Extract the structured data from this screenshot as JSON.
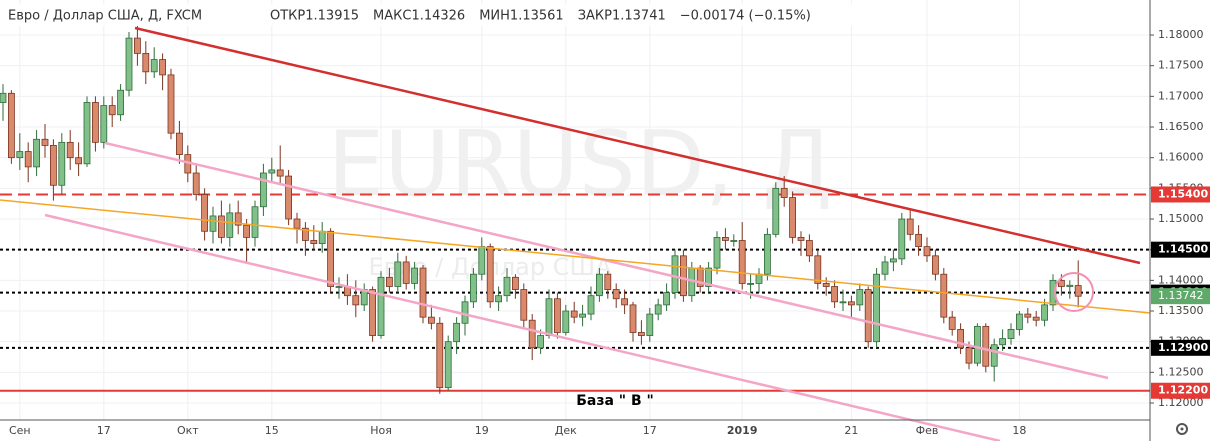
{
  "header": {
    "title": "Евро / Доллар США, Д, FXCM",
    "fields": [
      "ОТКР",
      "МАКС",
      "МИН",
      "ЗАКР"
    ],
    "change": "−0.00174 (−0.15%)"
  },
  "watermark": {
    "symbol": "EURUSD, Д",
    "name": "Евро / Доллар США"
  },
  "annotation": "База \" В \"",
  "chart_data": {
    "type": "candlestick",
    "categories": [
      null,
      null,
      "Сен",
      null,
      null,
      null,
      null,
      null,
      null,
      null,
      null,
      null,
      "17",
      null,
      null,
      null,
      null,
      null,
      null,
      null,
      null,
      null,
      "Окт",
      null,
      null,
      null,
      null,
      null,
      null,
      null,
      null,
      null,
      "15",
      null,
      null,
      null,
      null,
      null,
      null,
      null,
      null,
      null,
      null,
      null,
      null,
      "Ноя",
      null,
      null,
      null,
      null,
      null,
      null,
      null,
      null,
      null,
      null,
      null,
      "19",
      null,
      null,
      null,
      null,
      null,
      null,
      null,
      null,
      null,
      "Дек",
      null,
      null,
      null,
      null,
      null,
      null,
      null,
      null,
      null,
      "17",
      null,
      null,
      null,
      null,
      null,
      null,
      null,
      null,
      null,
      null,
      "2019",
      null,
      null,
      null,
      null,
      null,
      null,
      null,
      null,
      null,
      null,
      null,
      null,
      "21",
      null,
      null,
      null,
      null,
      null,
      null,
      null,
      null,
      "Фев",
      null,
      null,
      null,
      null,
      null,
      null,
      null,
      null,
      null,
      null,
      "18",
      null,
      null,
      null,
      null,
      null,
      null,
      null
    ],
    "candles": [
      [
        1.169,
        1.172,
        1.166,
        1.1705
      ],
      [
        1.1705,
        1.171,
        1.159,
        1.16
      ],
      [
        1.16,
        1.164,
        1.158,
        1.161
      ],
      [
        1.161,
        1.1625,
        1.156,
        1.1585
      ],
      [
        1.1585,
        1.1645,
        1.157,
        1.163
      ],
      [
        1.163,
        1.1655,
        1.16,
        1.162
      ],
      [
        1.162,
        1.163,
        1.153,
        1.1555
      ],
      [
        1.1555,
        1.164,
        1.154,
        1.1625
      ],
      [
        1.1625,
        1.1645,
        1.158,
        1.16
      ],
      [
        1.16,
        1.1625,
        1.157,
        1.159
      ],
      [
        1.159,
        1.17,
        1.1585,
        1.169
      ],
      [
        1.169,
        1.17,
        1.161,
        1.1625
      ],
      [
        1.1625,
        1.17,
        1.1615,
        1.1685
      ],
      [
        1.1685,
        1.17,
        1.165,
        1.167
      ],
      [
        1.167,
        1.172,
        1.166,
        1.171
      ],
      [
        1.171,
        1.1805,
        1.17,
        1.1795
      ],
      [
        1.1795,
        1.1815,
        1.175,
        1.177
      ],
      [
        1.177,
        1.179,
        1.172,
        1.174
      ],
      [
        1.174,
        1.178,
        1.173,
        1.176
      ],
      [
        1.176,
        1.177,
        1.171,
        1.1735
      ],
      [
        1.1735,
        1.1745,
        1.163,
        1.164
      ],
      [
        1.164,
        1.166,
        1.159,
        1.1605
      ],
      [
        1.1605,
        1.162,
        1.156,
        1.1575
      ],
      [
        1.1575,
        1.159,
        1.153,
        1.154
      ],
      [
        1.154,
        1.155,
        1.1465,
        1.148
      ],
      [
        1.148,
        1.152,
        1.146,
        1.1505
      ],
      [
        1.1505,
        1.153,
        1.146,
        1.147
      ],
      [
        1.147,
        1.1525,
        1.1455,
        1.151
      ],
      [
        1.151,
        1.153,
        1.1475,
        1.149
      ],
      [
        1.149,
        1.15,
        1.143,
        1.147
      ],
      [
        1.147,
        1.153,
        1.1455,
        1.152
      ],
      [
        1.152,
        1.159,
        1.1505,
        1.1575
      ],
      [
        1.1575,
        1.16,
        1.156,
        1.158
      ],
      [
        1.158,
        1.162,
        1.1555,
        1.157
      ],
      [
        1.157,
        1.158,
        1.149,
        1.15
      ],
      [
        1.15,
        1.151,
        1.146,
        1.1485
      ],
      [
        1.1485,
        1.1495,
        1.144,
        1.1465
      ],
      [
        1.1465,
        1.149,
        1.145,
        1.146
      ],
      [
        1.146,
        1.1495,
        1.1445,
        1.148
      ],
      [
        1.148,
        1.1485,
        1.138,
        1.139
      ],
      [
        1.139,
        1.1405,
        1.137,
        1.139
      ],
      [
        1.139,
        1.141,
        1.136,
        1.1375
      ],
      [
        1.1375,
        1.14,
        1.134,
        1.136
      ],
      [
        1.136,
        1.1395,
        1.135,
        1.1385
      ],
      [
        1.1385,
        1.139,
        1.13,
        1.131
      ],
      [
        1.131,
        1.1415,
        1.1305,
        1.1405
      ],
      [
        1.1405,
        1.142,
        1.138,
        1.139
      ],
      [
        1.139,
        1.1445,
        1.138,
        1.143
      ],
      [
        1.143,
        1.144,
        1.1385,
        1.1395
      ],
      [
        1.1395,
        1.143,
        1.1385,
        1.142
      ],
      [
        1.142,
        1.1425,
        1.133,
        1.134
      ],
      [
        1.134,
        1.136,
        1.132,
        1.133
      ],
      [
        1.133,
        1.134,
        1.1215,
        1.1225
      ],
      [
        1.1225,
        1.131,
        1.122,
        1.13
      ],
      [
        1.13,
        1.134,
        1.128,
        1.133
      ],
      [
        1.133,
        1.1375,
        1.131,
        1.1365
      ],
      [
        1.1365,
        1.142,
        1.1355,
        1.141
      ],
      [
        1.141,
        1.147,
        1.14,
        1.1455
      ],
      [
        1.1455,
        1.146,
        1.1355,
        1.1365
      ],
      [
        1.1365,
        1.139,
        1.135,
        1.1375
      ],
      [
        1.1375,
        1.142,
        1.1365,
        1.1405
      ],
      [
        1.1405,
        1.141,
        1.137,
        1.1385
      ],
      [
        1.1385,
        1.1395,
        1.132,
        1.1335
      ],
      [
        1.1335,
        1.1345,
        1.127,
        1.129
      ],
      [
        1.129,
        1.132,
        1.128,
        1.131
      ],
      [
        1.131,
        1.1385,
        1.1305,
        1.137
      ],
      [
        1.137,
        1.138,
        1.1305,
        1.1315
      ],
      [
        1.1315,
        1.136,
        1.131,
        1.135
      ],
      [
        1.135,
        1.1365,
        1.133,
        1.134
      ],
      [
        1.134,
        1.136,
        1.1325,
        1.1345
      ],
      [
        1.1345,
        1.139,
        1.1335,
        1.1375
      ],
      [
        1.1375,
        1.142,
        1.1365,
        1.141
      ],
      [
        1.141,
        1.1415,
        1.137,
        1.1385
      ],
      [
        1.1385,
        1.1395,
        1.1355,
        1.137
      ],
      [
        1.137,
        1.1385,
        1.1345,
        1.136
      ],
      [
        1.136,
        1.1365,
        1.13,
        1.1315
      ],
      [
        1.1315,
        1.1335,
        1.1295,
        1.131
      ],
      [
        1.131,
        1.1355,
        1.13,
        1.1345
      ],
      [
        1.1345,
        1.137,
        1.1335,
        1.136
      ],
      [
        1.136,
        1.1395,
        1.135,
        1.138
      ],
      [
        1.138,
        1.145,
        1.137,
        1.144
      ],
      [
        1.144,
        1.145,
        1.1365,
        1.1375
      ],
      [
        1.1375,
        1.143,
        1.1365,
        1.142
      ],
      [
        1.142,
        1.1425,
        1.138,
        1.139
      ],
      [
        1.139,
        1.143,
        1.138,
        1.142
      ],
      [
        1.142,
        1.148,
        1.141,
        1.147
      ],
      [
        1.147,
        1.1485,
        1.145,
        1.1465
      ],
      [
        1.1465,
        1.1475,
        1.1455,
        1.1465
      ],
      [
        1.1465,
        1.1495,
        1.1385,
        1.1395
      ],
      [
        1.1395,
        1.141,
        1.137,
        1.1395
      ],
      [
        1.1395,
        1.142,
        1.138,
        1.141
      ],
      [
        1.141,
        1.1485,
        1.14,
        1.1475
      ],
      [
        1.1475,
        1.156,
        1.147,
        1.155
      ],
      [
        1.155,
        1.157,
        1.152,
        1.1535
      ],
      [
        1.1535,
        1.1545,
        1.146,
        1.147
      ],
      [
        1.147,
        1.148,
        1.144,
        1.1465
      ],
      [
        1.1465,
        1.1475,
        1.143,
        1.144
      ],
      [
        1.144,
        1.145,
        1.1385,
        1.1395
      ],
      [
        1.1395,
        1.1405,
        1.1375,
        1.139
      ],
      [
        1.139,
        1.14,
        1.1355,
        1.1365
      ],
      [
        1.1365,
        1.1385,
        1.135,
        1.1365
      ],
      [
        1.1365,
        1.1375,
        1.134,
        1.136
      ],
      [
        1.136,
        1.1395,
        1.135,
        1.1385
      ],
      [
        1.1385,
        1.139,
        1.129,
        1.13
      ],
      [
        1.13,
        1.142,
        1.129,
        1.141
      ],
      [
        1.141,
        1.144,
        1.14,
        1.143
      ],
      [
        1.143,
        1.145,
        1.1415,
        1.1435
      ],
      [
        1.1435,
        1.151,
        1.1425,
        1.15
      ],
      [
        1.15,
        1.1515,
        1.1465,
        1.1475
      ],
      [
        1.1475,
        1.149,
        1.144,
        1.1455
      ],
      [
        1.1455,
        1.147,
        1.143,
        1.144
      ],
      [
        1.144,
        1.145,
        1.14,
        1.141
      ],
      [
        1.141,
        1.142,
        1.133,
        1.134
      ],
      [
        1.134,
        1.135,
        1.131,
        1.132
      ],
      [
        1.132,
        1.133,
        1.128,
        1.129
      ],
      [
        1.129,
        1.13,
        1.1255,
        1.1265
      ],
      [
        1.1265,
        1.133,
        1.126,
        1.1325
      ],
      [
        1.1325,
        1.133,
        1.125,
        1.126
      ],
      [
        1.126,
        1.1305,
        1.1235,
        1.1295
      ],
      [
        1.1295,
        1.132,
        1.1285,
        1.1305
      ],
      [
        1.1305,
        1.133,
        1.1295,
        1.132
      ],
      [
        1.132,
        1.135,
        1.131,
        1.1345
      ],
      [
        1.1345,
        1.1355,
        1.133,
        1.134
      ],
      [
        1.134,
        1.135,
        1.1325,
        1.1335
      ],
      [
        1.1335,
        1.137,
        1.1325,
        1.136
      ],
      [
        1.136,
        1.141,
        1.135,
        1.14
      ],
      [
        1.14,
        1.141,
        1.1375,
        1.139
      ],
      [
        1.139,
        1.14,
        1.137,
        1.1392
      ],
      [
        1.13915,
        1.14326,
        1.13561,
        1.13741
      ]
    ],
    "up_color": "#82c08a",
    "down_color": "#d98a6c",
    "ylim": [
      1.11723,
      1.18571
    ],
    "yticks": [
      {
        "value": 1.12,
        "label": "1.12000"
      },
      {
        "value": 1.125,
        "label": "1.12500"
      },
      {
        "value": 1.13,
        "label": "1.13000"
      },
      {
        "value": 1.135,
        "label": "1.13500"
      },
      {
        "value": 1.14,
        "label": "1.14000"
      },
      {
        "value": 1.145,
        "label": "1.14500"
      },
      {
        "value": 1.15,
        "label": "1.15000"
      },
      {
        "value": 1.155,
        "label": "1.15500"
      },
      {
        "value": 1.16,
        "label": "1.16000"
      },
      {
        "value": 1.165,
        "label": "1.16500"
      },
      {
        "value": 1.17,
        "label": "1.17000"
      },
      {
        "value": 1.175,
        "label": "1.17500"
      },
      {
        "value": 1.18,
        "label": "1.18000"
      }
    ],
    "levels": [
      {
        "value": 1.154,
        "label": "1.15400",
        "color": "#e53935",
        "style": "dashed"
      },
      {
        "value": 1.145,
        "label": "1.14500",
        "color": "#000000",
        "style": "dotted"
      },
      {
        "value": 1.138,
        "label": "1.13800",
        "color": "#000000",
        "style": "dotted"
      },
      {
        "value": 1.129,
        "label": "1.12900",
        "color": "#000000",
        "style": "dotted"
      },
      {
        "value": 1.122,
        "label": "1.12200",
        "color": "#e53935",
        "style": "solid"
      }
    ],
    "last_price": 1.13742,
    "last_color": "#5fa96b",
    "grid": true
  }
}
